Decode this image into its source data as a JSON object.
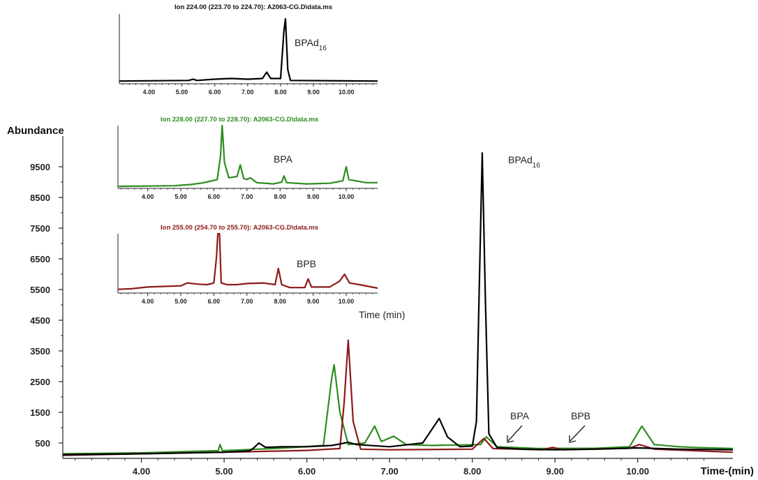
{
  "chart_data": [
    {
      "type": "line",
      "ylabel": "Abundance",
      "xlabel": "Time-(min)",
      "xlim": [
        3.05,
        11.15
      ],
      "ylim": [
        0,
        10500
      ],
      "xticks": [
        "4.00",
        "5.00",
        "6.00",
        "7.00",
        "8.00",
        "9.00",
        "10.00"
      ],
      "yticks": [
        "500",
        "1500",
        "2500",
        "3500",
        "4500",
        "5500",
        "6500",
        "7500",
        "8500",
        "9500"
      ],
      "grid": false,
      "annotations": [
        "BPAd16",
        "BPA",
        "BPB"
      ],
      "series": [
        {
          "color": "#000000",
          "points": [
            [
              3.05,
              120
            ],
            [
              4.0,
              150
            ],
            [
              5.0,
              200
            ],
            [
              5.3,
              240
            ],
            [
              5.35,
              320
            ],
            [
              5.42,
              500
            ],
            [
              5.5,
              360
            ],
            [
              5.7,
              380
            ],
            [
              6.0,
              380
            ],
            [
              6.3,
              420
            ],
            [
              6.5,
              520
            ],
            [
              6.6,
              450
            ],
            [
              7.0,
              380
            ],
            [
              7.4,
              500
            ],
            [
              7.6,
              1300
            ],
            [
              7.7,
              700
            ],
            [
              7.85,
              380
            ],
            [
              8.0,
              400
            ],
            [
              8.05,
              1200
            ],
            [
              8.08,
              5000
            ],
            [
              8.12,
              9950
            ],
            [
              8.16,
              5000
            ],
            [
              8.2,
              800
            ],
            [
              8.3,
              350
            ],
            [
              8.6,
              300
            ],
            [
              9.0,
              280
            ],
            [
              9.5,
              300
            ],
            [
              10.0,
              340
            ],
            [
              10.5,
              300
            ],
            [
              11.15,
              280
            ]
          ]
        },
        {
          "color": "#2d8c1e",
          "points": [
            [
              3.05,
              150
            ],
            [
              4.0,
              180
            ],
            [
              4.93,
              250
            ],
            [
              4.95,
              450
            ],
            [
              4.98,
              250
            ],
            [
              5.4,
              300
            ],
            [
              5.6,
              320
            ],
            [
              5.8,
              350
            ],
            [
              6.2,
              420
            ],
            [
              6.3,
              2600
            ],
            [
              6.33,
              3050
            ],
            [
              6.4,
              1500
            ],
            [
              6.5,
              450
            ],
            [
              6.7,
              500
            ],
            [
              6.82,
              1050
            ],
            [
              6.9,
              550
            ],
            [
              7.05,
              720
            ],
            [
              7.2,
              450
            ],
            [
              7.5,
              420
            ],
            [
              8.1,
              450
            ],
            [
              8.17,
              700
            ],
            [
              8.3,
              380
            ],
            [
              8.8,
              320
            ],
            [
              9.5,
              330
            ],
            [
              9.9,
              380
            ],
            [
              10.05,
              1050
            ],
            [
              10.2,
              450
            ],
            [
              10.5,
              380
            ],
            [
              10.75,
              350
            ],
            [
              11.15,
              320
            ]
          ]
        },
        {
          "color": "#8b1a1a",
          "points": [
            [
              3.05,
              100
            ],
            [
              4.0,
              150
            ],
            [
              5.0,
              200
            ],
            [
              6.0,
              260
            ],
            [
              6.4,
              320
            ],
            [
              6.45,
              1800
            ],
            [
              6.5,
              3850
            ],
            [
              6.56,
              1200
            ],
            [
              6.65,
              300
            ],
            [
              7.0,
              280
            ],
            [
              8.0,
              300
            ],
            [
              8.14,
              650
            ],
            [
              8.25,
              320
            ],
            [
              8.85,
              280
            ],
            [
              8.97,
              360
            ],
            [
              9.1,
              280
            ],
            [
              9.9,
              330
            ],
            [
              10.02,
              450
            ],
            [
              10.2,
              300
            ],
            [
              11.15,
              200
            ]
          ]
        }
      ]
    },
    {
      "type": "line",
      "title": "Ion 224.00 (223.70 to 224.70): A2063-CG.D\\data.ms",
      "xlim": [
        3.1,
        10.95
      ],
      "xticks": [
        "4.00",
        "5.00",
        "6.00",
        "7.00",
        "8.00",
        "9.00",
        "10.00"
      ],
      "annotation": "BPAd16",
      "series": [
        {
          "color": "#000000",
          "points": [
            [
              3.1,
              0.02
            ],
            [
              5.2,
              0.03
            ],
            [
              5.35,
              0.05
            ],
            [
              5.45,
              0.03
            ],
            [
              6.0,
              0.05
            ],
            [
              6.5,
              0.06
            ],
            [
              7.0,
              0.05
            ],
            [
              7.45,
              0.06
            ],
            [
              7.58,
              0.16
            ],
            [
              7.7,
              0.06
            ],
            [
              8.0,
              0.06
            ],
            [
              8.1,
              0.8
            ],
            [
              8.15,
              1.0
            ],
            [
              8.22,
              0.2
            ],
            [
              8.3,
              0.03
            ],
            [
              10.95,
              0.02
            ]
          ]
        }
      ]
    },
    {
      "type": "line",
      "title": "Ion 228.00 (227.70 to 228.70): A2063-CG.D\\data.ms",
      "xlim": [
        3.1,
        10.95
      ],
      "xticks": [
        "4.00",
        "5.00",
        "6.00",
        "7.00",
        "8.00",
        "9.00",
        "10.00"
      ],
      "annotation": "BPA",
      "series": [
        {
          "color": "#2d8c1e",
          "points": [
            [
              3.1,
              0.01
            ],
            [
              4.8,
              0.02
            ],
            [
              5.3,
              0.04
            ],
            [
              5.7,
              0.07
            ],
            [
              6.1,
              0.12
            ],
            [
              6.2,
              0.5
            ],
            [
              6.25,
              1.0
            ],
            [
              6.32,
              0.4
            ],
            [
              6.45,
              0.15
            ],
            [
              6.7,
              0.17
            ],
            [
              6.8,
              0.36
            ],
            [
              6.9,
              0.14
            ],
            [
              7.0,
              0.12
            ],
            [
              7.1,
              0.15
            ],
            [
              7.3,
              0.07
            ],
            [
              7.8,
              0.05
            ],
            [
              8.05,
              0.08
            ],
            [
              8.12,
              0.18
            ],
            [
              8.2,
              0.07
            ],
            [
              8.8,
              0.05
            ],
            [
              9.5,
              0.06
            ],
            [
              9.9,
              0.1
            ],
            [
              10.0,
              0.33
            ],
            [
              10.08,
              0.12
            ],
            [
              10.3,
              0.1
            ],
            [
              10.6,
              0.07
            ],
            [
              10.95,
              0.07
            ]
          ]
        }
      ]
    },
    {
      "type": "line",
      "title": "Ion 255.00 (254.70 to 255.70): A2063-CG.D\\data.ms",
      "xlim": [
        3.1,
        10.95
      ],
      "xticks": [
        "4.00",
        "5.00",
        "6.00",
        "7.00",
        "8.00",
        "9.00",
        "10.00"
      ],
      "xlabel": "Time (min)",
      "annotation": "BPB",
      "series": [
        {
          "color": "#8b1a1a",
          "points": [
            [
              3.1,
              0.04
            ],
            [
              3.5,
              0.05
            ],
            [
              4.0,
              0.08
            ],
            [
              4.5,
              0.09
            ],
            [
              5.0,
              0.1
            ],
            [
              5.2,
              0.15
            ],
            [
              5.5,
              0.13
            ],
            [
              5.8,
              0.12
            ],
            [
              6.0,
              0.15
            ],
            [
              6.08,
              0.6
            ],
            [
              6.12,
              1.0
            ],
            [
              6.17,
              1.0
            ],
            [
              6.22,
              0.15
            ],
            [
              6.4,
              0.12
            ],
            [
              6.7,
              0.12
            ],
            [
              7.0,
              0.14
            ],
            [
              7.5,
              0.15
            ],
            [
              7.85,
              0.12
            ],
            [
              7.95,
              0.4
            ],
            [
              8.05,
              0.12
            ],
            [
              8.3,
              0.07
            ],
            [
              8.75,
              0.07
            ],
            [
              8.85,
              0.22
            ],
            [
              8.95,
              0.08
            ],
            [
              9.5,
              0.08
            ],
            [
              9.8,
              0.18
            ],
            [
              9.95,
              0.3
            ],
            [
              10.1,
              0.15
            ],
            [
              10.4,
              0.12
            ],
            [
              10.95,
              0.06
            ]
          ]
        }
      ]
    }
  ]
}
